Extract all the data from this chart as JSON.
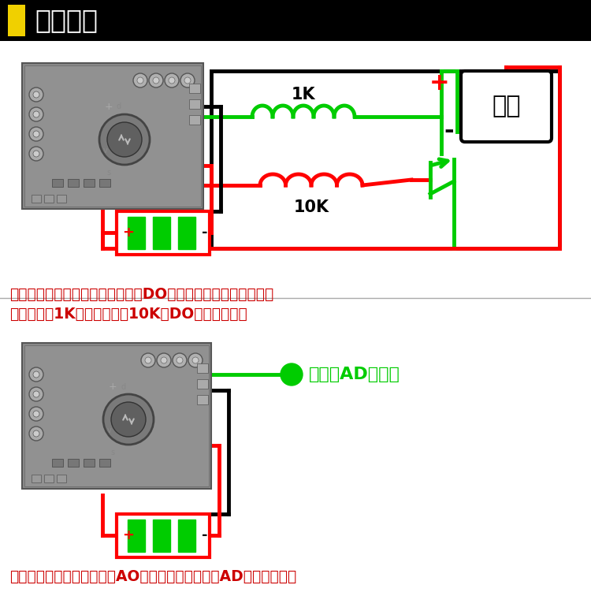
{
  "title": "接线示意",
  "bg_color": "#ffffff",
  "header_bg": "#000000",
  "header_accent": "#f0d000",
  "title_color": "#ffffff",
  "circuit1_text1": "1K",
  "circuit1_text2": "10K",
  "circuit1_label": "负载",
  "desc1": "原理：当探头检测超过设定值时，DO输出低电平，三极管导通，",
  "desc1b": "负载工作。1K为限流电阻，10K为DO口上拉电阻。",
  "desc2": "原理：无需过多复杂电路，AO口可直接通过单片机AD口采集电压。",
  "label2": "单片机AD采集口",
  "red": "#ff0000",
  "green": "#00cc00",
  "black": "#000000",
  "desc_color": "#cc0000",
  "figsize": [
    7.5,
    7.56
  ],
  "dpi": 100
}
